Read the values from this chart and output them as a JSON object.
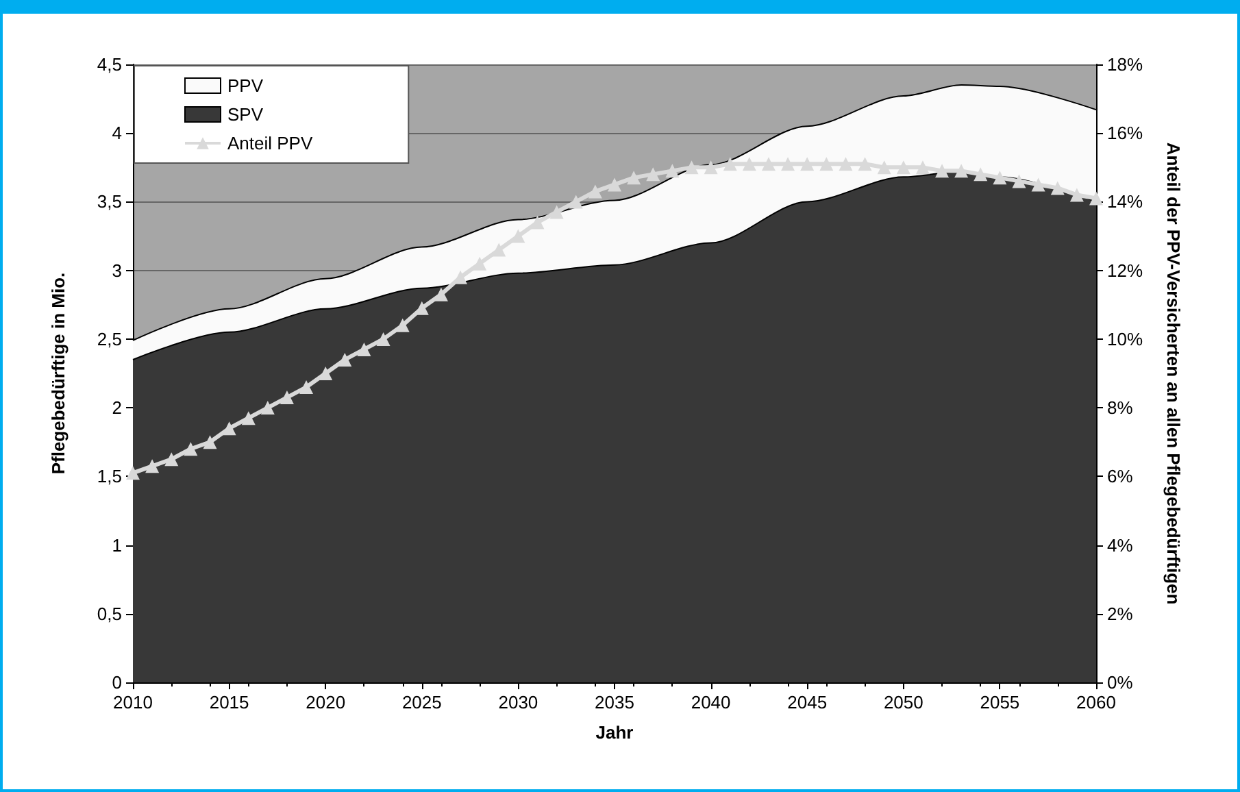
{
  "chart_data": {
    "type": "area",
    "stacked": true,
    "xlabel": "Jahr",
    "ylabel": "Pflegebedürftige in Mio.",
    "y2label": "Anteil der PPV-Versicherten an allen Pflegebedürftigen",
    "x": [
      2010,
      2015,
      2020,
      2025,
      2030,
      2035,
      2040,
      2045,
      2050,
      2053,
      2055,
      2060
    ],
    "series": [
      {
        "name": "SPV",
        "color": "#383838",
        "values": [
          2.35,
          2.55,
          2.72,
          2.87,
          2.98,
          3.04,
          3.2,
          3.5,
          3.68,
          3.72,
          3.68,
          3.5
        ]
      },
      {
        "name": "PPV",
        "color": "#fafafa",
        "values": [
          0.14,
          0.17,
          0.22,
          0.3,
          0.39,
          0.47,
          0.57,
          0.55,
          0.59,
          0.63,
          0.66,
          0.67
        ]
      },
      {
        "name": "Anteil PPV",
        "type": "line",
        "axis": "y2",
        "color": "#d9d9d9",
        "marker": "triangle",
        "x": [
          2010,
          2011,
          2012,
          2013,
          2014,
          2015,
          2016,
          2017,
          2018,
          2019,
          2020,
          2021,
          2022,
          2023,
          2024,
          2025,
          2026,
          2027,
          2028,
          2029,
          2030,
          2031,
          2032,
          2033,
          2034,
          2035,
          2036,
          2037,
          2038,
          2039,
          2040,
          2041,
          2042,
          2043,
          2044,
          2045,
          2046,
          2047,
          2048,
          2049,
          2050,
          2051,
          2052,
          2053,
          2054,
          2055,
          2056,
          2057,
          2058,
          2059,
          2060
        ],
        "values": [
          6.1,
          6.3,
          6.5,
          6.8,
          7.0,
          7.4,
          7.7,
          8.0,
          8.3,
          8.6,
          9.0,
          9.4,
          9.7,
          10.0,
          10.4,
          10.9,
          11.3,
          11.8,
          12.2,
          12.6,
          13.0,
          13.4,
          13.7,
          14.0,
          14.3,
          14.5,
          14.7,
          14.8,
          14.9,
          15.0,
          15.0,
          15.1,
          15.1,
          15.1,
          15.1,
          15.1,
          15.1,
          15.1,
          15.1,
          15.0,
          15.0,
          15.0,
          14.9,
          14.9,
          14.8,
          14.7,
          14.6,
          14.5,
          14.4,
          14.2,
          14.1
        ]
      }
    ],
    "xlim": [
      2010,
      2060
    ],
    "xticks": [
      2010,
      2015,
      2020,
      2025,
      2030,
      2035,
      2040,
      2045,
      2050,
      2055,
      2060
    ],
    "ylim": [
      0,
      4.5
    ],
    "yticks": [
      0,
      {
        "value": 0.5,
        "label": "0,5"
      },
      1,
      {
        "value": 1.5,
        "label": "1,5"
      },
      2,
      {
        "value": 2.5,
        "label": "2,5"
      },
      3,
      {
        "value": 3.5,
        "label": "3,5"
      },
      4,
      {
        "value": 4.5,
        "label": "4,5"
      }
    ],
    "y2lim": [
      0,
      18
    ],
    "y2ticks": [
      {
        "value": 0,
        "label": "0%"
      },
      {
        "value": 2,
        "label": "2%"
      },
      {
        "value": 4,
        "label": "4%"
      },
      {
        "value": 6,
        "label": "6%"
      },
      {
        "value": 8,
        "label": "8%"
      },
      {
        "value": 10,
        "label": "10%"
      },
      {
        "value": 12,
        "label": "12%"
      },
      {
        "value": 14,
        "label": "14%"
      },
      {
        "value": 16,
        "label": "16%"
      },
      {
        "value": 18,
        "label": "18%"
      }
    ],
    "grid": "y",
    "legend": "top left"
  }
}
